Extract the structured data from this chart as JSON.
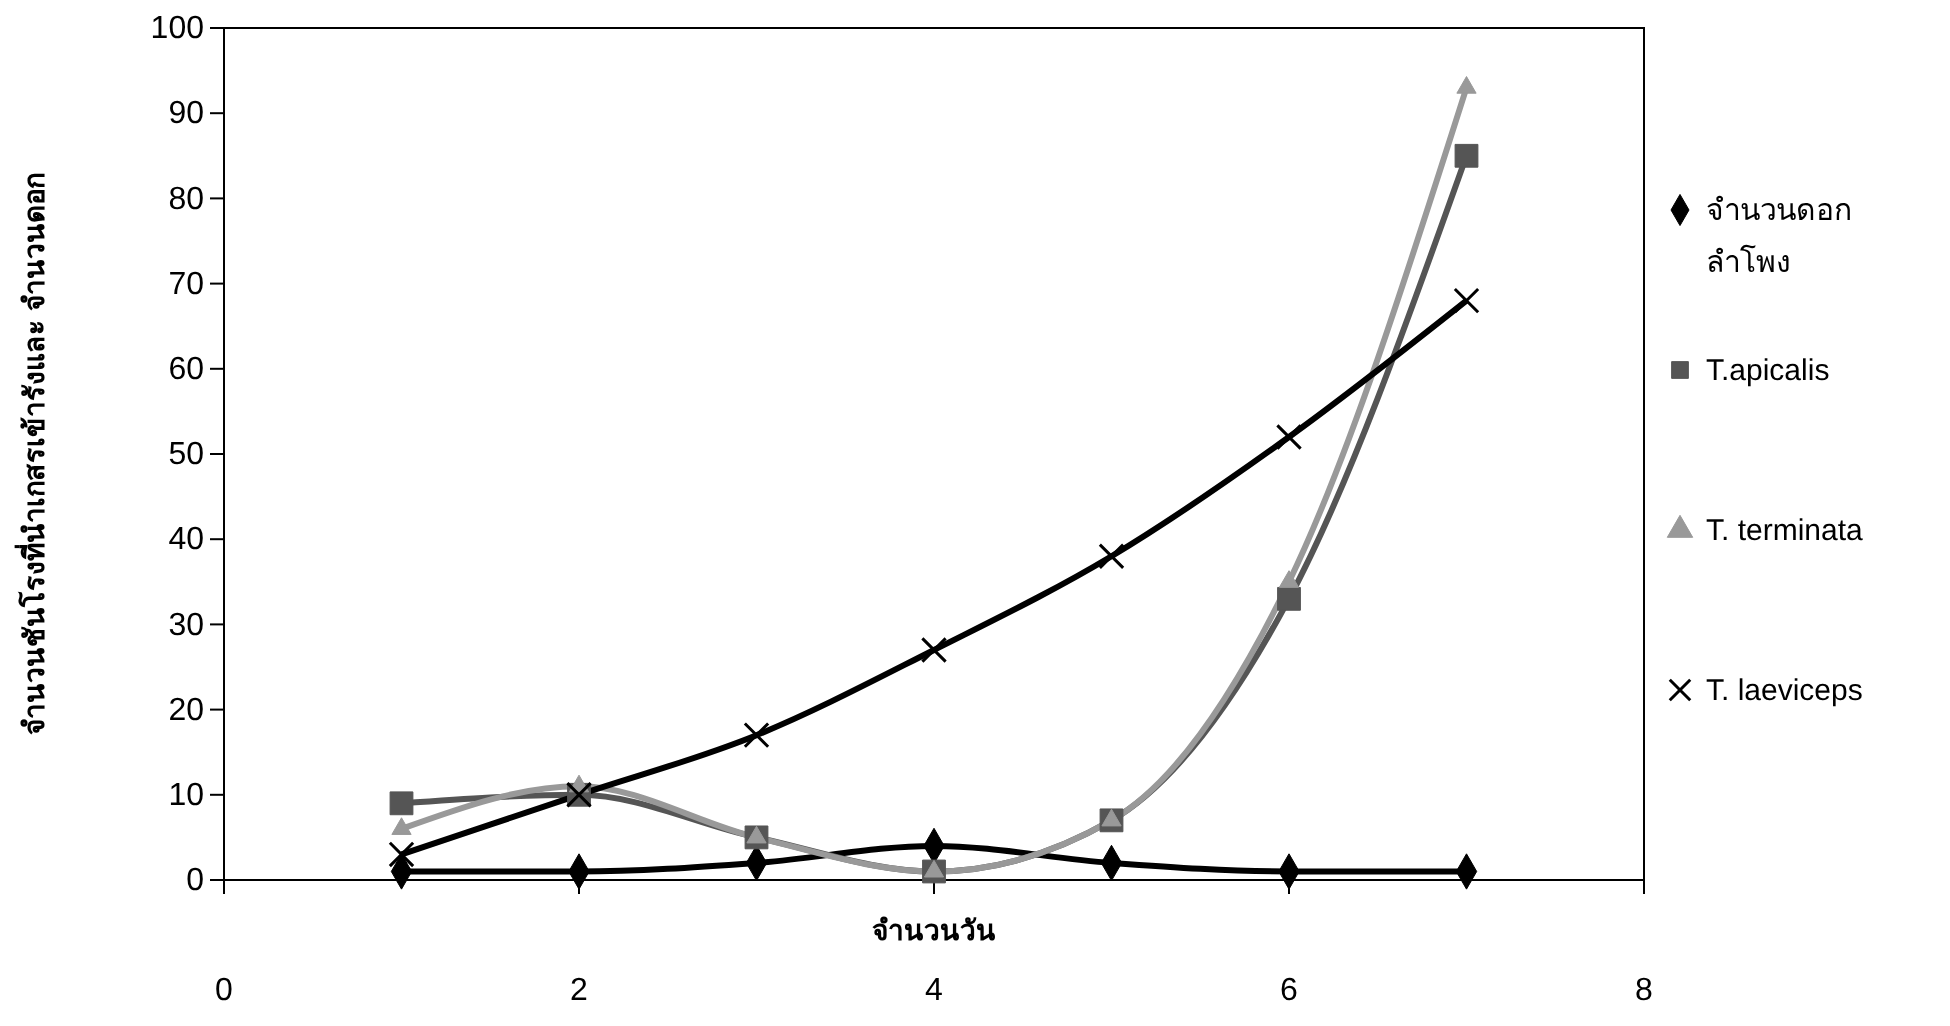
{
  "chart_data": {
    "type": "line",
    "xlabel": "จำนวนวัน",
    "ylabel": "จำนวนชันโรงที่นำเกสรเข้ารังและ จำนวนดอก",
    "x": [
      1,
      2,
      3,
      4,
      5,
      6,
      7
    ],
    "xlim": [
      0,
      8
    ],
    "xticks": [
      0,
      2,
      4,
      6,
      8
    ],
    "ylim": [
      0,
      100
    ],
    "yticks": [
      0,
      10,
      20,
      30,
      40,
      50,
      60,
      70,
      80,
      90,
      100
    ],
    "grid": false,
    "legend": "right",
    "line_style": "solid",
    "series": [
      {
        "name": "จำนวนดอก\nลำโพง",
        "color": "#000000",
        "marker": "diamond",
        "values": [
          1,
          1,
          2,
          4,
          2,
          1,
          1
        ]
      },
      {
        "name": "T.apicalis",
        "color": "#555555",
        "marker": "square",
        "values": [
          9,
          10,
          5,
          1,
          7,
          33,
          85
        ]
      },
      {
        "name": "T. terminata",
        "color": "#999999",
        "marker": "triangle",
        "values": [
          6,
          11,
          5,
          1,
          7,
          35,
          93
        ]
      },
      {
        "name": "T. laeviceps",
        "color": "#000000",
        "marker": "cross",
        "values": [
          3,
          10,
          17,
          27,
          38,
          52,
          68
        ]
      }
    ]
  }
}
